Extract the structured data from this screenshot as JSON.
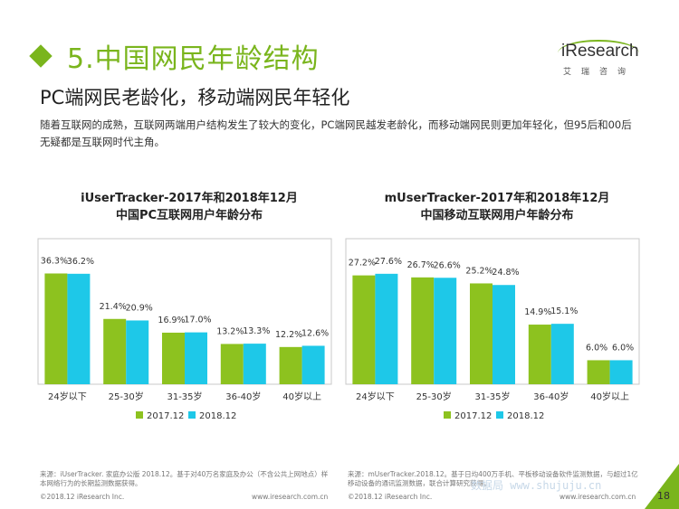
{
  "header": {
    "title": "5.中国网民年龄结构",
    "subtitle": "PC端网民老龄化，移动端网民年轻化",
    "description": "随着互联网的成熟，互联网两端用户结构发生了较大的变化，PC端网民越发老龄化，而移动端网民则更加年轻化，但95后和00后无疑都是互联网时代主角。"
  },
  "logo": {
    "name": "iResearch",
    "sub": "艾瑞咨询"
  },
  "colors": {
    "brand": "#7ab51d",
    "series_2017": "#8dc21f",
    "series_2018": "#1ec8e8"
  },
  "chart_data": [
    {
      "type": "bar",
      "title": "iUserTracker-2017年和2018年12月\n中国PC互联网用户年龄分布",
      "title_line1": "iUserTracker-2017年和2018年12月",
      "title_line2": "中国PC互联网用户年龄分布",
      "categories": [
        "24岁以下",
        "25-30岁",
        "31-35岁",
        "36-40岁",
        "40岁以上"
      ],
      "series": [
        {
          "name": "2017.12",
          "values": [
            36.3,
            21.4,
            16.9,
            13.2,
            12.2
          ],
          "labels": [
            "36.3%",
            "21.4%",
            "16.9%",
            "13.2%",
            "12.2%"
          ]
        },
        {
          "name": "2018.12",
          "values": [
            36.2,
            20.9,
            17.0,
            13.3,
            12.6
          ],
          "labels": [
            "36.2%",
            "20.9%",
            "17.0%",
            "13.3%",
            "12.6%"
          ]
        }
      ],
      "ylim": [
        0,
        40
      ],
      "legend": "bottom",
      "grid": false
    },
    {
      "type": "bar",
      "title": "mUserTracker-2017年和2018年12月\n中国移动互联网用户年龄分布",
      "title_line1": "mUserTracker-2017年和2018年12月",
      "title_line2": "中国移动互联网用户年龄分布",
      "categories": [
        "24岁以下",
        "25-30岁",
        "31-35岁",
        "36-40岁",
        "40岁以上"
      ],
      "series": [
        {
          "name": "2017.12",
          "values": [
            27.2,
            26.7,
            25.2,
            14.9,
            6.0
          ],
          "labels": [
            "27.2%",
            "26.7%",
            "25.2%",
            "14.9%",
            "6.0%"
          ]
        },
        {
          "name": "2018.12",
          "values": [
            27.6,
            26.6,
            24.8,
            15.1,
            6.0
          ],
          "labels": [
            "27.6%",
            "26.6%",
            "24.8%",
            "15.1%",
            "6.0%"
          ]
        }
      ],
      "ylim": [
        0,
        30.5
      ],
      "legend": "bottom",
      "grid": false
    }
  ],
  "footer": {
    "source_left": "来源：iUserTracker. 家庭办公版 2018.12。基于对40万名家庭及办公（不含公共上网地点）样本网络行为的长期监测数据获得。",
    "source_right": "来源：mUserTracker.2018.12。基于日均400万手机、平板移动设备软件监测数据，与超过1亿移动设备的通讯监测数据，联合计算研究获得。",
    "copyright": "©2018.12 iResearch Inc.",
    "website": "www.iresearch.com.cn",
    "page": "18",
    "watermark": "数据局 www.shujuju.cn"
  }
}
